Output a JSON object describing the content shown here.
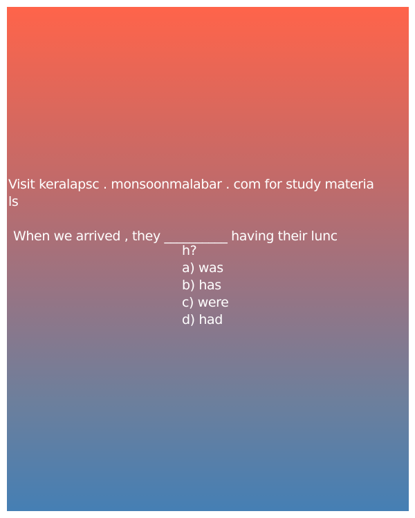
{
  "background": {
    "gradient_top": "#ff644a",
    "gradient_bottom": "#457fb4",
    "text_color": "#ffffff"
  },
  "source": {
    "line1": "Visit keralapsc . monsoonmalabar . com for study materia",
    "line2": "ls"
  },
  "question": {
    "line1": "When we arrived , they __________ having their lunc",
    "line2": "h?"
  },
  "options": [
    "a) was",
    "b) has",
    "c) were",
    "d) had"
  ]
}
